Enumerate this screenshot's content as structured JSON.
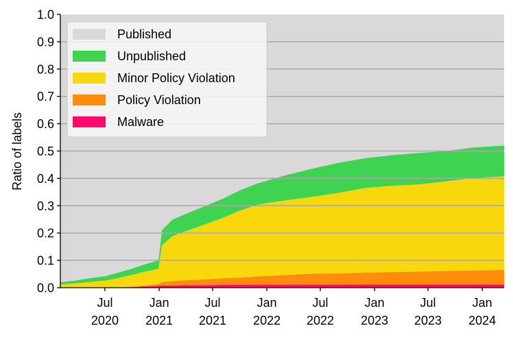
{
  "chart_data": {
    "type": "area",
    "stacked": true,
    "title": "",
    "xlabel": "",
    "ylabel": "Ratio of labels",
    "ylim": [
      0,
      1.0
    ],
    "xlim": [
      "2020-02-01",
      "2024-03-15"
    ],
    "yticks": [
      "0.0",
      "0.1",
      "0.2",
      "0.3",
      "0.4",
      "0.5",
      "0.6",
      "0.7",
      "0.8",
      "0.9",
      "1.0"
    ],
    "xticks": [
      {
        "date": "2020-07-01",
        "line1": "Jul",
        "line2": "2020"
      },
      {
        "date": "2021-01-01",
        "line1": "Jan",
        "line2": "2021"
      },
      {
        "date": "2021-07-01",
        "line1": "Jul",
        "line2": "2021"
      },
      {
        "date": "2022-01-01",
        "line1": "Jan",
        "line2": "2022"
      },
      {
        "date": "2022-07-01",
        "line1": "Jul",
        "line2": "2022"
      },
      {
        "date": "2023-01-01",
        "line1": "Jan",
        "line2": "2023"
      },
      {
        "date": "2023-07-01",
        "line1": "Jul",
        "line2": "2023"
      },
      {
        "date": "2024-01-01",
        "line1": "Jan",
        "line2": "2024"
      }
    ],
    "grid": "horizontal",
    "legend_position": "top-left",
    "x": [
      "2020-02-01",
      "2020-03-15",
      "2020-05-01",
      "2020-07-01",
      "2020-08-15",
      "2020-10-01",
      "2020-11-15",
      "2020-12-20",
      "2020-12-30",
      "2021-01-10",
      "2021-02-15",
      "2021-04-01",
      "2021-06-01",
      "2021-08-01",
      "2021-10-01",
      "2021-12-01",
      "2022-03-01",
      "2022-06-01",
      "2022-09-01",
      "2022-12-01",
      "2023-03-01",
      "2023-06-01",
      "2023-09-01",
      "2023-12-01",
      "2024-03-15"
    ],
    "series": [
      {
        "name": "Malware",
        "color": "#ff0a6c",
        "values": [
          0.0,
          0.0,
          0.0,
          0.0,
          0.0,
          0.002,
          0.004,
          0.006,
          0.007,
          0.008,
          0.008,
          0.009,
          0.009,
          0.01,
          0.01,
          0.011,
          0.011,
          0.011,
          0.011,
          0.012,
          0.012,
          0.012,
          0.012,
          0.012,
          0.012
        ]
      },
      {
        "name": "Policy Violation",
        "color": "#ff8c0a",
        "values": [
          0.0,
          0.0,
          0.0,
          0.0,
          0.0,
          0.002,
          0.004,
          0.006,
          0.007,
          0.012,
          0.016,
          0.018,
          0.021,
          0.024,
          0.027,
          0.03,
          0.035,
          0.04,
          0.041,
          0.043,
          0.045,
          0.047,
          0.049,
          0.051,
          0.053
        ]
      },
      {
        "name": "Minor Policy Violation",
        "color": "#f8d80c",
        "values": [
          0.012,
          0.015,
          0.02,
          0.026,
          0.035,
          0.043,
          0.051,
          0.055,
          0.056,
          0.135,
          0.165,
          0.18,
          0.2,
          0.22,
          0.245,
          0.263,
          0.273,
          0.281,
          0.295,
          0.31,
          0.316,
          0.319,
          0.328,
          0.338,
          0.343
        ]
      },
      {
        "name": "Unpublished",
        "color": "#3ed452",
        "values": [
          0.008,
          0.01,
          0.013,
          0.016,
          0.02,
          0.023,
          0.027,
          0.03,
          0.031,
          0.055,
          0.06,
          0.063,
          0.067,
          0.07,
          0.074,
          0.078,
          0.091,
          0.103,
          0.11,
          0.109,
          0.112,
          0.115,
          0.111,
          0.112,
          0.112
        ]
      },
      {
        "name": "Published",
        "color": "#d9d9d9",
        "values": [
          0.98,
          0.975,
          0.967,
          0.958,
          0.945,
          0.93,
          0.914,
          0.903,
          0.899,
          0.79,
          0.751,
          0.73,
          0.703,
          0.676,
          0.644,
          0.618,
          0.59,
          0.565,
          0.543,
          0.526,
          0.515,
          0.507,
          0.5,
          0.487,
          0.48
        ]
      }
    ]
  }
}
